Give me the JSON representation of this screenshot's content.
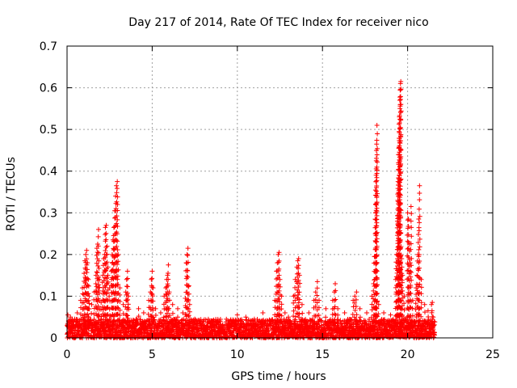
{
  "chart_data": {
    "type": "scatter",
    "title": "Day 217 of 2014, Rate Of TEC Index for receiver nico",
    "xlabel": "GPS time / hours",
    "ylabel": "ROTI / TECUs",
    "xlim": [
      0,
      25
    ],
    "ylim": [
      0,
      0.7
    ],
    "xticks": [
      "0",
      "5",
      "10",
      "15",
      "20",
      "25"
    ],
    "yticks": [
      "0",
      "0.1",
      "0.2",
      "0.3",
      "0.4",
      "0.5",
      "0.6",
      "0.7"
    ],
    "grid": true,
    "marker": "plus",
    "color": "#ff0000",
    "series": [
      {
        "points": [
          [
            0.05,
            0.055
          ],
          [
            0.2,
            0.05
          ],
          [
            0.45,
            0.045
          ],
          [
            0.6,
            0.06
          ],
          [
            0.8,
            0.09
          ],
          [
            0.9,
            0.12
          ],
          [
            1.0,
            0.155
          ],
          [
            1.05,
            0.185
          ],
          [
            1.1,
            0.2
          ],
          [
            1.15,
            0.21
          ],
          [
            1.2,
            0.18
          ],
          [
            1.25,
            0.14
          ],
          [
            1.3,
            0.1
          ],
          [
            1.45,
            0.08
          ],
          [
            1.6,
            0.11
          ],
          [
            1.7,
            0.15
          ],
          [
            1.75,
            0.215
          ],
          [
            1.8,
            0.225
          ],
          [
            1.85,
            0.26
          ],
          [
            1.9,
            0.14
          ],
          [
            2.0,
            0.085
          ],
          [
            2.1,
            0.15
          ],
          [
            2.15,
            0.19
          ],
          [
            2.2,
            0.2
          ],
          [
            2.25,
            0.265
          ],
          [
            2.3,
            0.27
          ],
          [
            2.35,
            0.22
          ],
          [
            2.4,
            0.17
          ],
          [
            2.5,
            0.12
          ],
          [
            2.6,
            0.16
          ],
          [
            2.65,
            0.2
          ],
          [
            2.7,
            0.235
          ],
          [
            2.75,
            0.265
          ],
          [
            2.8,
            0.305
          ],
          [
            2.85,
            0.34
          ],
          [
            2.9,
            0.365
          ],
          [
            2.95,
            0.375
          ],
          [
            3.0,
            0.2
          ],
          [
            3.1,
            0.12
          ],
          [
            3.3,
            0.08
          ],
          [
            3.45,
            0.11
          ],
          [
            3.5,
            0.14
          ],
          [
            3.55,
            0.16
          ],
          [
            3.6,
            0.1
          ],
          [
            4.2,
            0.07
          ],
          [
            4.5,
            0.06
          ],
          [
            4.8,
            0.09
          ],
          [
            4.9,
            0.11
          ],
          [
            4.95,
            0.14
          ],
          [
            5.0,
            0.16
          ],
          [
            5.05,
            0.12
          ],
          [
            5.2,
            0.07
          ],
          [
            5.5,
            0.06
          ],
          [
            5.7,
            0.1
          ],
          [
            5.8,
            0.12
          ],
          [
            5.85,
            0.14
          ],
          [
            5.9,
            0.15
          ],
          [
            5.95,
            0.175
          ],
          [
            6.0,
            0.11
          ],
          [
            6.2,
            0.08
          ],
          [
            6.5,
            0.07
          ],
          [
            6.8,
            0.06
          ],
          [
            6.95,
            0.095
          ],
          [
            7.0,
            0.18
          ],
          [
            7.05,
            0.2
          ],
          [
            7.1,
            0.215
          ],
          [
            7.15,
            0.125
          ],
          [
            7.2,
            0.08
          ],
          [
            7.5,
            0.045
          ],
          [
            8.0,
            0.04
          ],
          [
            8.5,
            0.04
          ],
          [
            9.0,
            0.04
          ],
          [
            9.5,
            0.035
          ],
          [
            10.0,
            0.055
          ],
          [
            10.5,
            0.05
          ],
          [
            11.0,
            0.045
          ],
          [
            11.5,
            0.06
          ],
          [
            12.2,
            0.09
          ],
          [
            12.3,
            0.16
          ],
          [
            12.35,
            0.18
          ],
          [
            12.4,
            0.2
          ],
          [
            12.45,
            0.205
          ],
          [
            12.5,
            0.14
          ],
          [
            12.6,
            0.1
          ],
          [
            12.8,
            0.06
          ],
          [
            13.0,
            0.05
          ],
          [
            13.3,
            0.1
          ],
          [
            13.4,
            0.14
          ],
          [
            13.5,
            0.17
          ],
          [
            13.55,
            0.185
          ],
          [
            13.6,
            0.19
          ],
          [
            13.65,
            0.15
          ],
          [
            13.8,
            0.08
          ],
          [
            14.2,
            0.06
          ],
          [
            14.5,
            0.09
          ],
          [
            14.6,
            0.11
          ],
          [
            14.7,
            0.135
          ],
          [
            14.8,
            0.09
          ],
          [
            15.2,
            0.07
          ],
          [
            15.6,
            0.09
          ],
          [
            15.7,
            0.11
          ],
          [
            15.75,
            0.13
          ],
          [
            15.9,
            0.07
          ],
          [
            16.3,
            0.06
          ],
          [
            16.8,
            0.09
          ],
          [
            16.9,
            0.1
          ],
          [
            17.0,
            0.11
          ],
          [
            17.2,
            0.07
          ],
          [
            17.6,
            0.06
          ],
          [
            17.9,
            0.1
          ],
          [
            18.0,
            0.13
          ],
          [
            18.05,
            0.195
          ],
          [
            18.1,
            0.25
          ],
          [
            18.12,
            0.32
          ],
          [
            18.14,
            0.375
          ],
          [
            18.16,
            0.425
          ],
          [
            18.18,
            0.465
          ],
          [
            18.2,
            0.51
          ],
          [
            18.3,
            0.08
          ],
          [
            18.6,
            0.06
          ],
          [
            19.0,
            0.055
          ],
          [
            19.3,
            0.14
          ],
          [
            19.35,
            0.2
          ],
          [
            19.4,
            0.28
          ],
          [
            19.42,
            0.345
          ],
          [
            19.44,
            0.375
          ],
          [
            19.46,
            0.42
          ],
          [
            19.48,
            0.455
          ],
          [
            19.5,
            0.495
          ],
          [
            19.52,
            0.53
          ],
          [
            19.54,
            0.57
          ],
          [
            19.56,
            0.595
          ],
          [
            19.58,
            0.61
          ],
          [
            19.6,
            0.615
          ],
          [
            19.65,
            0.19
          ],
          [
            19.7,
            0.15
          ],
          [
            19.8,
            0.1
          ],
          [
            20.0,
            0.3
          ],
          [
            20.05,
            0.285
          ],
          [
            20.1,
            0.225
          ],
          [
            20.15,
            0.18
          ],
          [
            20.2,
            0.315
          ],
          [
            20.3,
            0.09
          ],
          [
            20.5,
            0.12
          ],
          [
            20.55,
            0.15
          ],
          [
            20.6,
            0.2
          ],
          [
            20.65,
            0.285
          ],
          [
            20.7,
            0.365
          ],
          [
            20.8,
            0.14
          ],
          [
            21.0,
            0.08
          ],
          [
            21.2,
            0.065
          ],
          [
            21.4,
            0.08
          ],
          [
            21.45,
            0.085
          ],
          [
            21.5,
            0.05
          ]
        ],
        "baseline": {
          "x_start": 0.0,
          "x_end": 21.6,
          "y_min": 0.0,
          "y_max": 0.045
        }
      }
    ]
  }
}
